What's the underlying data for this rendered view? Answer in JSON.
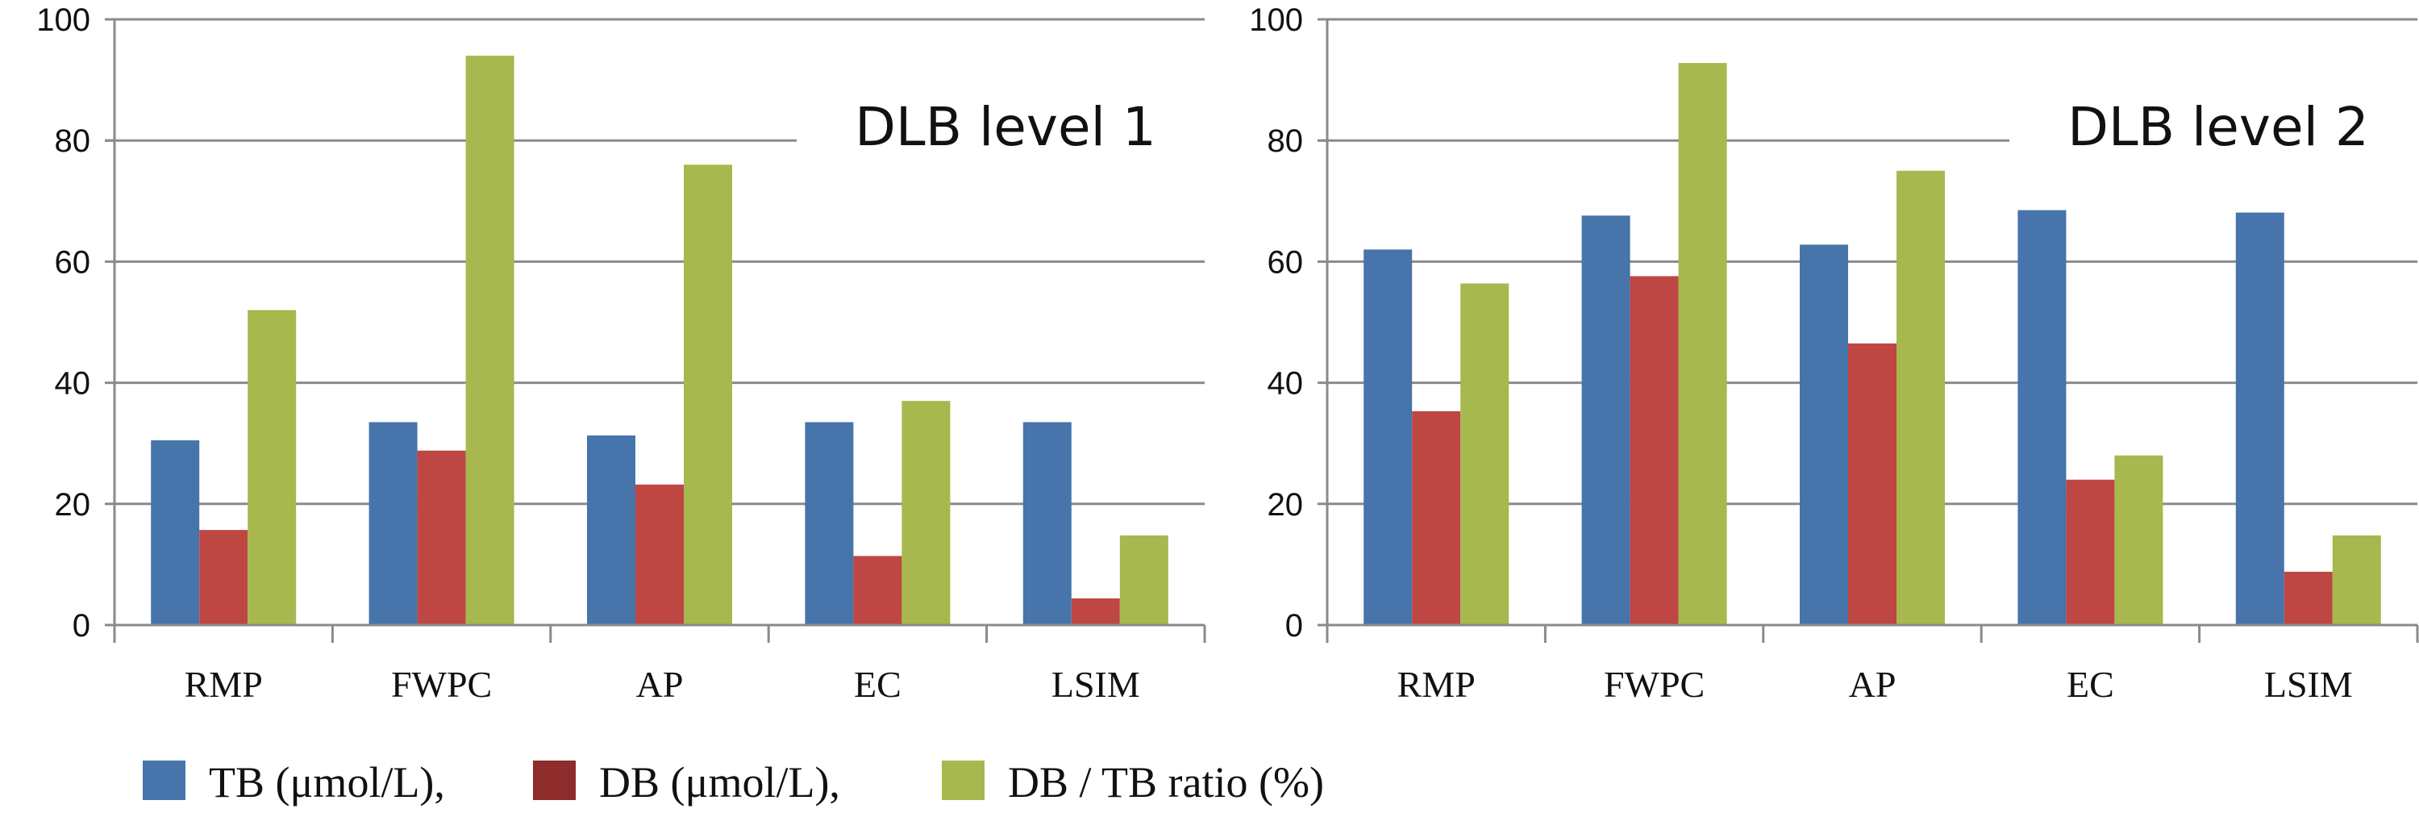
{
  "chart_data": [
    {
      "type": "bar",
      "title": "DLB level 1",
      "categories": [
        "RMP",
        "FWPC",
        "AP",
        "EC",
        "LSIM"
      ],
      "series": [
        {
          "name": "TB (μmol/L),",
          "values": [
            30.5,
            33.5,
            31.3,
            33.5,
            33.5
          ]
        },
        {
          "name": "DB  (μmol/L),",
          "values": [
            15.7,
            28.8,
            23.2,
            11.4,
            4.4
          ]
        },
        {
          "name": "DB / TB ratio (%)",
          "values": [
            52,
            94,
            76,
            37,
            14.8
          ]
        }
      ],
      "ylim": [
        0,
        100
      ],
      "yticks": [
        "0",
        "20",
        "40",
        "60",
        "80",
        "100"
      ],
      "grid": true
    },
    {
      "type": "bar",
      "title": "DLB level 2",
      "categories": [
        "RMP",
        "FWPC",
        "AP",
        "EC",
        "LSIM"
      ],
      "series": [
        {
          "name": "TB (μmol/L),",
          "values": [
            62,
            67.6,
            62.8,
            68.5,
            68.1
          ]
        },
        {
          "name": "DB  (μmol/L),",
          "values": [
            35.3,
            57.6,
            46.5,
            24,
            8.8
          ]
        },
        {
          "name": "DB / TB ratio (%)",
          "values": [
            56.4,
            92.8,
            75,
            28,
            14.8
          ]
        }
      ],
      "ylim": [
        0,
        100
      ],
      "yticks": [
        "0",
        "20",
        "40",
        "60",
        "80",
        "100"
      ],
      "grid": true
    }
  ],
  "legend": {
    "placement": "bottom",
    "items": [
      {
        "label": "TB (μmol/L),",
        "color": "#4674AB"
      },
      {
        "label": "DB  (μmol/L),",
        "color": "#8E2B2B"
      },
      {
        "label": "DB / TB ratio (%)",
        "color": "#A7B84E"
      }
    ]
  },
  "colors": {
    "series": [
      "#4674AB",
      "#BE4643",
      "#A7B84E"
    ],
    "grid": "#8a8a8a"
  }
}
